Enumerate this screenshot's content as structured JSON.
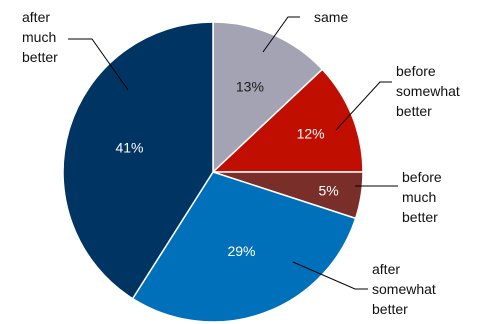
{
  "chart_data": {
    "type": "pie",
    "title": "",
    "start_angle_deg": 0,
    "direction": "clockwise",
    "slices": [
      {
        "name": "same",
        "label_lines": [
          "same"
        ],
        "value": 13,
        "value_label": "13%",
        "color": "#a3a3b3",
        "value_text_color": "#1a1a1a"
      },
      {
        "name": "before somewhat better",
        "label_lines": [
          "before",
          "somewhat",
          "better"
        ],
        "value": 12,
        "value_label": "12%",
        "color": "#c00f00",
        "value_text_color": "#ffffff"
      },
      {
        "name": "before much better",
        "label_lines": [
          "before",
          "much",
          "better"
        ],
        "value": 5,
        "value_label": "5%",
        "color": "#7a2e2a",
        "value_text_color": "#ffffff"
      },
      {
        "name": "after somewhat better",
        "label_lines": [
          "after",
          "somewhat",
          "better"
        ],
        "value": 29,
        "value_label": "29%",
        "color": "#0070bb",
        "value_text_color": "#ffffff"
      },
      {
        "name": "after much better",
        "label_lines": [
          "after",
          "much",
          "better"
        ],
        "value": 41,
        "value_label": "41%",
        "color": "#003462",
        "value_text_color": "#ffffff"
      }
    ]
  }
}
